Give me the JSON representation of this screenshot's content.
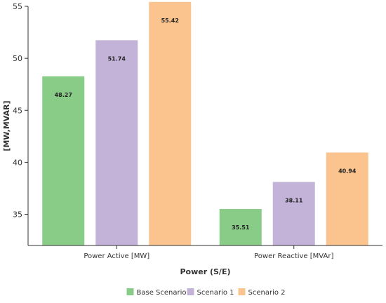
{
  "chart_data": {
    "type": "bar",
    "categories": [
      "Power Active [MW]",
      "Power Reactive [MVAr]"
    ],
    "series": [
      {
        "name": "Base Scenario",
        "values": [
          48.27,
          35.51
        ],
        "color": "#88cc88"
      },
      {
        "name": "Scenario 1",
        "values": [
          51.74,
          38.11
        ],
        "color": "#c3b3d9"
      },
      {
        "name": "Scenario 2",
        "values": [
          55.42,
          40.94
        ],
        "color": "#fbc48e"
      }
    ],
    "xlabel": "Power (S/E)",
    "ylabel": "[MW,MVAR]",
    "ylim": [
      32,
      55
    ],
    "yticks": [
      35,
      40,
      45,
      50,
      55
    ],
    "legend_position": "bottom",
    "grid": false
  }
}
